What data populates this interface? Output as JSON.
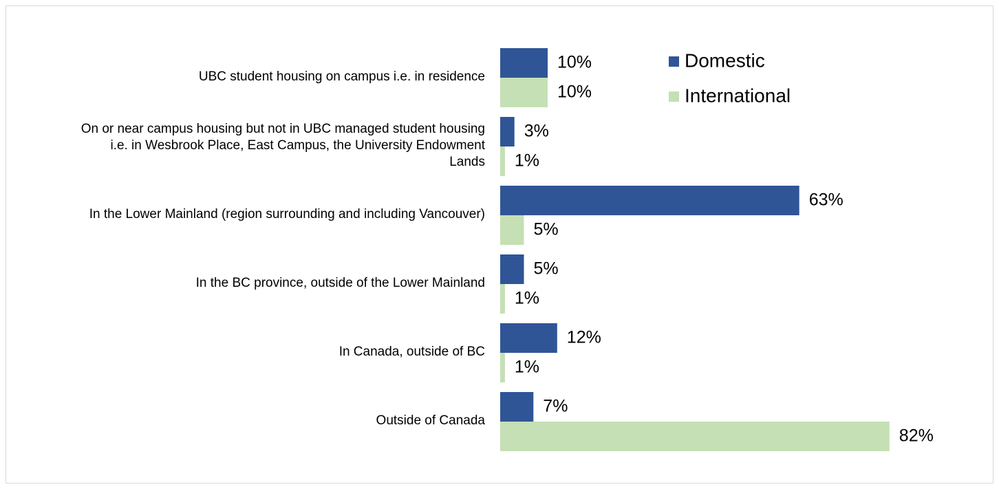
{
  "chart_data": {
    "type": "bar",
    "orientation": "horizontal",
    "categories": [
      "UBC student housing on campus i.e. in residence",
      "On or near campus housing but not in UBC managed student housing i.e. in Wesbrook Place, East Campus, the University Endowment Lands",
      "In the Lower Mainland (region surrounding and including Vancouver)",
      "In the BC province, outside of the Lower Mainland",
      "In Canada, outside of BC",
      "Outside of Canada"
    ],
    "series": [
      {
        "name": "Domestic",
        "color": "#2f5597",
        "values": [
          10,
          3,
          63,
          5,
          12,
          7
        ],
        "value_labels": [
          "10%",
          "3%",
          "63%",
          "5%",
          "12%",
          "7%"
        ]
      },
      {
        "name": "International",
        "color": "#c5e0b4",
        "values": [
          10,
          1,
          5,
          1,
          1,
          82
        ],
        "value_labels": [
          "10%",
          "1%",
          "5%",
          "1%",
          "1%",
          "82%"
        ]
      }
    ],
    "xlim": [
      0,
      100
    ],
    "legend": "top-right"
  }
}
